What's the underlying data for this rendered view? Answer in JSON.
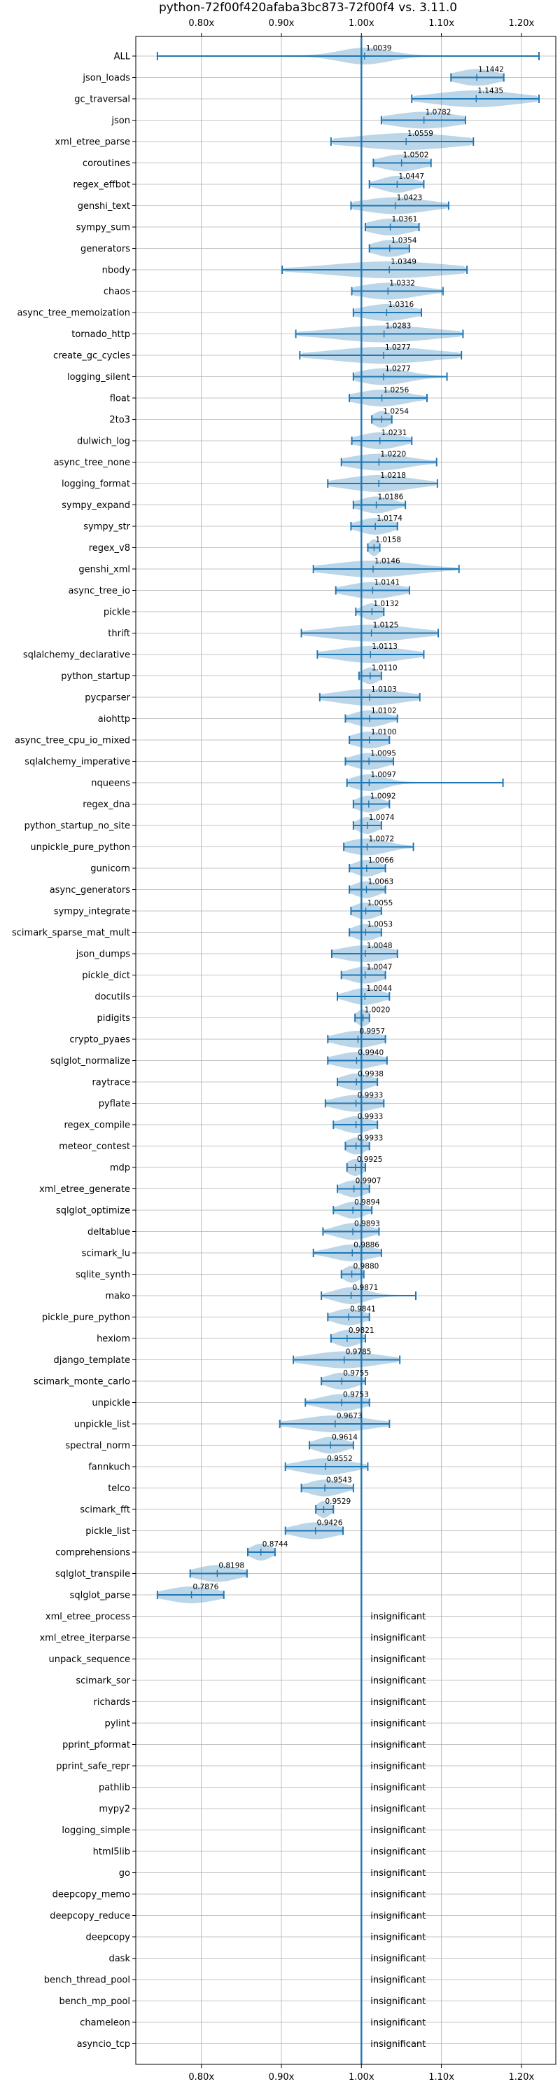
{
  "chart_data": {
    "type": "violin",
    "title": "python-72f00f420afaba3bc873-72f00f4 vs. 3.11.0",
    "x_ticks": [
      0.8,
      0.9,
      1.0,
      1.1,
      1.2
    ],
    "x_tick_labels": [
      "0.80x",
      "0.90x",
      "1.00x",
      "1.10x",
      "1.20x"
    ],
    "xlim": [
      0.718,
      1.243
    ],
    "reference": 1.0,
    "insignificant_label": "insignificant",
    "benchmarks": [
      {
        "name": "ALL",
        "value": 1.0039,
        "label": "1.0039",
        "min": 0.745,
        "max": 1.222,
        "spread": 0.03
      },
      {
        "name": "json_loads",
        "value": 1.1442,
        "label": "1.1442",
        "min": 1.112,
        "max": 1.178,
        "spread": 0.025
      },
      {
        "name": "gc_traversal",
        "value": 1.1435,
        "label": "1.1435",
        "min": 1.063,
        "max": 1.222,
        "spread": 0.05
      },
      {
        "name": "json",
        "value": 1.0782,
        "label": "1.0782",
        "min": 1.025,
        "max": 1.13,
        "spread": 0.04
      },
      {
        "name": "xml_etree_parse",
        "value": 1.0559,
        "label": "1.0559",
        "min": 0.962,
        "max": 1.14,
        "spread": 0.06
      },
      {
        "name": "coroutines",
        "value": 1.0502,
        "label": "1.0502",
        "min": 1.015,
        "max": 1.087,
        "spread": 0.025
      },
      {
        "name": "regex_effbot",
        "value": 1.0447,
        "label": "1.0447",
        "min": 1.01,
        "max": 1.078,
        "spread": 0.02
      },
      {
        "name": "genshi_text",
        "value": 1.0423,
        "label": "1.0423",
        "min": 0.987,
        "max": 1.109,
        "spread": 0.04
      },
      {
        "name": "sympy_sum",
        "value": 1.0361,
        "label": "1.0361",
        "min": 1.005,
        "max": 1.072,
        "spread": 0.025
      },
      {
        "name": "generators",
        "value": 1.0354,
        "label": "1.0354",
        "min": 1.01,
        "max": 1.06,
        "spread": 0.02
      },
      {
        "name": "nbody",
        "value": 1.0349,
        "label": "1.0349",
        "min": 0.901,
        "max": 1.132,
        "spread": 0.07
      },
      {
        "name": "chaos",
        "value": 1.0332,
        "label": "1.0332",
        "min": 0.988,
        "max": 1.102,
        "spread": 0.035
      },
      {
        "name": "async_tree_memoization",
        "value": 1.0316,
        "label": "1.0316",
        "min": 0.99,
        "max": 1.075,
        "spread": 0.03
      },
      {
        "name": "tornado_http",
        "value": 1.0283,
        "label": "1.0283",
        "min": 0.918,
        "max": 1.127,
        "spread": 0.06
      },
      {
        "name": "create_gc_cycles",
        "value": 1.0277,
        "label": "1.0277",
        "min": 0.923,
        "max": 1.125,
        "spread": 0.06
      },
      {
        "name": "logging_silent",
        "value": 1.0277,
        "label": "1.0277",
        "min": 0.99,
        "max": 1.107,
        "spread": 0.03
      },
      {
        "name": "float",
        "value": 1.0256,
        "label": "1.0256",
        "min": 0.985,
        "max": 1.082,
        "spread": 0.03
      },
      {
        "name": "2to3",
        "value": 1.0254,
        "label": "1.0254",
        "min": 1.013,
        "max": 1.038,
        "spread": 0.01
      },
      {
        "name": "dulwich_log",
        "value": 1.0231,
        "label": "1.0231",
        "min": 0.988,
        "max": 1.063,
        "spread": 0.025
      },
      {
        "name": "async_tree_none",
        "value": 1.022,
        "label": "1.0220",
        "min": 0.975,
        "max": 1.094,
        "spread": 0.035
      },
      {
        "name": "logging_format",
        "value": 1.0218,
        "label": "1.0218",
        "min": 0.958,
        "max": 1.095,
        "spread": 0.04
      },
      {
        "name": "sympy_expand",
        "value": 1.0186,
        "label": "1.0186",
        "min": 0.99,
        "max": 1.055,
        "spread": 0.02
      },
      {
        "name": "sympy_str",
        "value": 1.0174,
        "label": "1.0174",
        "min": 0.987,
        "max": 1.045,
        "spread": 0.02
      },
      {
        "name": "regex_v8",
        "value": 1.0158,
        "label": "1.0158",
        "min": 1.008,
        "max": 1.023,
        "spread": 0.006
      },
      {
        "name": "genshi_xml",
        "value": 1.0146,
        "label": "1.0146",
        "min": 0.94,
        "max": 1.122,
        "spread": 0.05
      },
      {
        "name": "async_tree_io",
        "value": 1.0141,
        "label": "1.0141",
        "min": 0.968,
        "max": 1.06,
        "spread": 0.03
      },
      {
        "name": "pickle",
        "value": 1.0132,
        "label": "1.0132",
        "min": 0.993,
        "max": 1.028,
        "spread": 0.012
      },
      {
        "name": "thrift",
        "value": 1.0125,
        "label": "1.0125",
        "min": 0.925,
        "max": 1.096,
        "spread": 0.05
      },
      {
        "name": "sqlalchemy_declarative",
        "value": 1.0113,
        "label": "1.0113",
        "min": 0.945,
        "max": 1.078,
        "spread": 0.04
      },
      {
        "name": "python_startup",
        "value": 1.011,
        "label": "1.0110",
        "min": 0.997,
        "max": 1.025,
        "spread": 0.01
      },
      {
        "name": "pycparser",
        "value": 1.0103,
        "label": "1.0103",
        "min": 0.948,
        "max": 1.073,
        "spread": 0.04
      },
      {
        "name": "aiohttp",
        "value": 1.0102,
        "label": "1.0102",
        "min": 0.98,
        "max": 1.045,
        "spread": 0.02
      },
      {
        "name": "async_tree_cpu_io_mixed",
        "value": 1.01,
        "label": "1.0100",
        "min": 0.985,
        "max": 1.035,
        "spread": 0.02
      },
      {
        "name": "sqlalchemy_imperative",
        "value": 1.0095,
        "label": "1.0095",
        "min": 0.98,
        "max": 1.04,
        "spread": 0.02
      },
      {
        "name": "nqueens",
        "value": 1.0097,
        "label": "1.0097",
        "min": 0.982,
        "max": 1.177,
        "spread": 0.02
      },
      {
        "name": "regex_dna",
        "value": 1.0092,
        "label": "1.0092",
        "min": 0.99,
        "max": 1.035,
        "spread": 0.015
      },
      {
        "name": "python_startup_no_site",
        "value": 1.0074,
        "label": "1.0074",
        "min": 0.99,
        "max": 1.025,
        "spread": 0.012
      },
      {
        "name": "unpickle_pure_python",
        "value": 1.0072,
        "label": "1.0072",
        "min": 0.978,
        "max": 1.065,
        "spread": 0.025
      },
      {
        "name": "gunicorn",
        "value": 1.0066,
        "label": "1.0066",
        "min": 0.985,
        "max": 1.03,
        "spread": 0.015
      },
      {
        "name": "async_generators",
        "value": 1.0063,
        "label": "1.0063",
        "min": 0.985,
        "max": 1.03,
        "spread": 0.015
      },
      {
        "name": "sympy_integrate",
        "value": 1.0055,
        "label": "1.0055",
        "min": 0.987,
        "max": 1.025,
        "spread": 0.015
      },
      {
        "name": "scimark_sparse_mat_mult",
        "value": 1.0053,
        "label": "1.0053",
        "min": 0.985,
        "max": 1.025,
        "spread": 0.015
      },
      {
        "name": "json_dumps",
        "value": 1.0048,
        "label": "1.0048",
        "min": 0.963,
        "max": 1.045,
        "spread": 0.03
      },
      {
        "name": "pickle_dict",
        "value": 1.0047,
        "label": "1.0047",
        "min": 0.975,
        "max": 1.03,
        "spread": 0.02
      },
      {
        "name": "docutils",
        "value": 1.0044,
        "label": "1.0044",
        "min": 0.97,
        "max": 1.035,
        "spread": 0.02
      },
      {
        "name": "pidigits",
        "value": 1.002,
        "label": "1.0020",
        "min": 0.992,
        "max": 1.01,
        "spread": 0.008
      },
      {
        "name": "crypto_pyaes",
        "value": 0.9957,
        "label": "0.9957",
        "min": 0.958,
        "max": 1.03,
        "spread": 0.025
      },
      {
        "name": "sqlglot_normalize",
        "value": 0.994,
        "label": "0.9940",
        "min": 0.958,
        "max": 1.032,
        "spread": 0.025
      },
      {
        "name": "raytrace",
        "value": 0.9938,
        "label": "0.9938",
        "min": 0.97,
        "max": 1.02,
        "spread": 0.018
      },
      {
        "name": "pyflate",
        "value": 0.9933,
        "label": "0.9933",
        "min": 0.955,
        "max": 1.028,
        "spread": 0.025
      },
      {
        "name": "regex_compile",
        "value": 0.9933,
        "label": "0.9933",
        "min": 0.965,
        "max": 1.02,
        "spread": 0.018
      },
      {
        "name": "meteor_contest",
        "value": 0.9933,
        "label": "0.9933",
        "min": 0.98,
        "max": 1.01,
        "spread": 0.012
      },
      {
        "name": "mdp",
        "value": 0.9925,
        "label": "0.9925",
        "min": 0.982,
        "max": 1.005,
        "spread": 0.01
      },
      {
        "name": "xml_etree_generate",
        "value": 0.9907,
        "label": "0.9907",
        "min": 0.97,
        "max": 1.01,
        "spread": 0.015
      },
      {
        "name": "sqlglot_optimize",
        "value": 0.9894,
        "label": "0.9894",
        "min": 0.965,
        "max": 1.013,
        "spread": 0.015
      },
      {
        "name": "deltablue",
        "value": 0.9893,
        "label": "0.9893",
        "min": 0.952,
        "max": 1.022,
        "spread": 0.02
      },
      {
        "name": "scimark_lu",
        "value": 0.9886,
        "label": "0.9886",
        "min": 0.94,
        "max": 1.025,
        "spread": 0.025
      },
      {
        "name": "sqlite_synth",
        "value": 0.988,
        "label": "0.9880",
        "min": 0.975,
        "max": 1.003,
        "spread": 0.01
      },
      {
        "name": "mako",
        "value": 0.9871,
        "label": "0.9871",
        "min": 0.95,
        "max": 1.068,
        "spread": 0.02
      },
      {
        "name": "pickle_pure_python",
        "value": 0.9841,
        "label": "0.9841",
        "min": 0.958,
        "max": 1.01,
        "spread": 0.018
      },
      {
        "name": "hexiom",
        "value": 0.9821,
        "label": "0.9821",
        "min": 0.962,
        "max": 1.005,
        "spread": 0.015
      },
      {
        "name": "django_template",
        "value": 0.9785,
        "label": "0.9785",
        "min": 0.915,
        "max": 1.048,
        "spread": 0.04
      },
      {
        "name": "scimark_monte_carlo",
        "value": 0.9755,
        "label": "0.9755",
        "min": 0.95,
        "max": 1.005,
        "spread": 0.018
      },
      {
        "name": "unpickle",
        "value": 0.9753,
        "label": "0.9753",
        "min": 0.93,
        "max": 1.01,
        "spread": 0.025
      },
      {
        "name": "unpickle_list",
        "value": 0.9673,
        "label": "0.9673",
        "min": 0.898,
        "max": 1.035,
        "spread": 0.04
      },
      {
        "name": "spectral_norm",
        "value": 0.9614,
        "label": "0.9614",
        "min": 0.935,
        "max": 0.99,
        "spread": 0.018
      },
      {
        "name": "fannkuch",
        "value": 0.9552,
        "label": "0.9552",
        "min": 0.905,
        "max": 1.008,
        "spread": 0.03
      },
      {
        "name": "telco",
        "value": 0.9543,
        "label": "0.9543",
        "min": 0.925,
        "max": 0.99,
        "spread": 0.02
      },
      {
        "name": "scimark_fft",
        "value": 0.9529,
        "label": "0.9529",
        "min": 0.943,
        "max": 0.965,
        "spread": 0.008
      },
      {
        "name": "pickle_list",
        "value": 0.9426,
        "label": "0.9426",
        "min": 0.905,
        "max": 0.977,
        "spread": 0.025
      },
      {
        "name": "comprehensions",
        "value": 0.8744,
        "label": "0.8744",
        "min": 0.858,
        "max": 0.892,
        "spread": 0.012
      },
      {
        "name": "sqlglot_transpile",
        "value": 0.8198,
        "label": "0.8198",
        "min": 0.786,
        "max": 0.857,
        "spread": 0.025
      },
      {
        "name": "sqlglot_parse",
        "value": 0.7876,
        "label": "0.7876",
        "min": 0.745,
        "max": 0.828,
        "spread": 0.03
      },
      {
        "name": "xml_etree_process",
        "insignificant": true
      },
      {
        "name": "xml_etree_iterparse",
        "insignificant": true
      },
      {
        "name": "unpack_sequence",
        "insignificant": true
      },
      {
        "name": "scimark_sor",
        "insignificant": true
      },
      {
        "name": "richards",
        "insignificant": true
      },
      {
        "name": "pylint",
        "insignificant": true
      },
      {
        "name": "pprint_pformat",
        "insignificant": true
      },
      {
        "name": "pprint_safe_repr",
        "insignificant": true
      },
      {
        "name": "pathlib",
        "insignificant": true
      },
      {
        "name": "mypy2",
        "insignificant": true
      },
      {
        "name": "logging_simple",
        "insignificant": true
      },
      {
        "name": "html5lib",
        "insignificant": true
      },
      {
        "name": "go",
        "insignificant": true
      },
      {
        "name": "deepcopy_memo",
        "insignificant": true
      },
      {
        "name": "deepcopy_reduce",
        "insignificant": true
      },
      {
        "name": "deepcopy",
        "insignificant": true
      },
      {
        "name": "dask",
        "insignificant": true
      },
      {
        "name": "bench_thread_pool",
        "insignificant": true
      },
      {
        "name": "bench_mp_pool",
        "insignificant": true
      },
      {
        "name": "chameleon",
        "insignificant": true
      },
      {
        "name": "asyncio_tcp",
        "insignificant": true
      }
    ],
    "colors": {
      "violin": "#1f77b4",
      "grid": "#b0b0b0",
      "reference": "#1f77b4"
    }
  }
}
